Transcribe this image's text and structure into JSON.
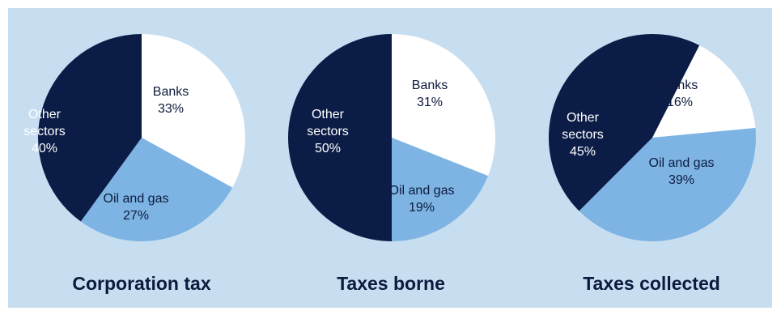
{
  "colors": {
    "panel_background": "#c7def1",
    "banks": "#ffffff",
    "oil_and_gas": "#7db4e3",
    "other_sectors": "#0b1c46",
    "dark_text": "#0c1a3c",
    "light_text": "#ffffff"
  },
  "chart_data": [
    {
      "type": "pie",
      "title": "Corporation tax",
      "slices": [
        {
          "label_lines": [
            "Banks",
            "33%"
          ],
          "value": 33,
          "color_key": "banks"
        },
        {
          "label_lines": [
            "Oil and gas",
            "27%"
          ],
          "value": 27,
          "color_key": "oil_and_gas"
        },
        {
          "label_lines": [
            "Other",
            "sectors",
            "40%"
          ],
          "value": 40,
          "color_key": "other_sectors"
        }
      ]
    },
    {
      "type": "pie",
      "title": "Taxes borne",
      "slices": [
        {
          "label_lines": [
            "Banks",
            "31%"
          ],
          "value": 31,
          "color_key": "banks"
        },
        {
          "label_lines": [
            "Oil and gas",
            "19%"
          ],
          "value": 19,
          "color_key": "oil_and_gas"
        },
        {
          "label_lines": [
            "Other",
            "sectors",
            "50%"
          ],
          "value": 50,
          "color_key": "other_sectors"
        }
      ]
    },
    {
      "type": "pie",
      "title": "Taxes collected",
      "slices": [
        {
          "label_lines": [
            "Banks",
            "16%"
          ],
          "value": 16,
          "color_key": "banks"
        },
        {
          "label_lines": [
            "Oil and gas",
            "39%"
          ],
          "value": 39,
          "color_key": "oil_and_gas"
        },
        {
          "label_lines": [
            "Other",
            "sectors",
            "45%"
          ],
          "value": 45,
          "color_key": "other_sectors"
        }
      ]
    }
  ]
}
